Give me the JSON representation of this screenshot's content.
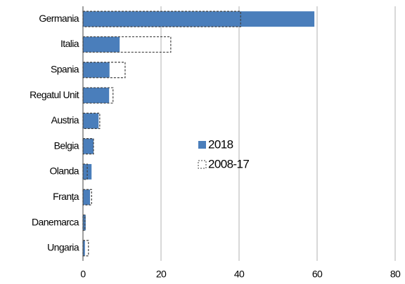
{
  "chart_data": {
    "type": "barh",
    "categories": [
      "Germania",
      "Italia",
      "Spania",
      "Regatul Unit",
      "Austria",
      "Belgia",
      "Olanda",
      "Franța",
      "Danemarca",
      "Ungaria"
    ],
    "series": [
      {
        "name": "2018",
        "color": "#4a7ebb",
        "style": "filled",
        "values": [
          59.3,
          9.4,
          6.8,
          6.7,
          4.0,
          2.7,
          2.2,
          1.8,
          0.7,
          0.5
        ]
      },
      {
        "name": "2008-17",
        "color": "#404040",
        "style": "dashed",
        "values": [
          40.4,
          22.5,
          10.8,
          7.7,
          4.3,
          2.7,
          1.1,
          2.2,
          0.5,
          1.4
        ]
      }
    ],
    "xlim": [
      0,
      80
    ],
    "xticks": [
      0,
      20,
      40,
      60,
      80
    ],
    "grid": true,
    "legend": "center"
  }
}
